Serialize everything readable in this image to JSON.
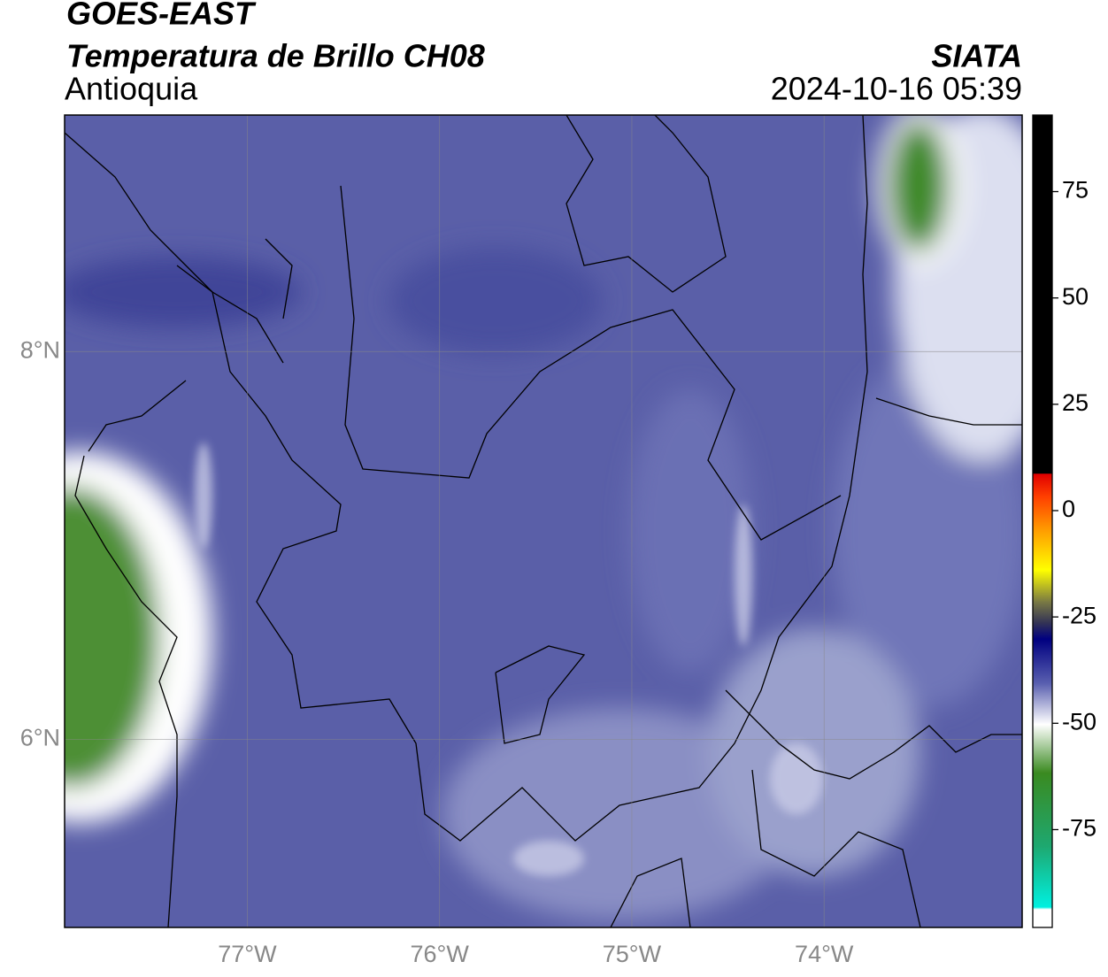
{
  "header": {
    "title": "GOES-EAST",
    "subtitle": "Temperatura de Brillo CH08",
    "region": "Antioquia",
    "source": "SIATA",
    "datetime": "2024-10-16 05:39"
  },
  "map": {
    "xlim": [
      -77.95,
      -72.97
    ],
    "ylim": [
      5.03,
      9.22
    ],
    "xticks": [
      {
        "value": -77,
        "label": "77°W"
      },
      {
        "value": -76,
        "label": "76°W"
      },
      {
        "value": -75,
        "label": "75°W"
      },
      {
        "value": -74,
        "label": "74°W"
      }
    ],
    "yticks": [
      {
        "value": 8,
        "label": "8°N"
      },
      {
        "value": 6,
        "label": "6°N"
      }
    ],
    "grid": true
  },
  "colorbar": {
    "lim": [
      -98,
      93
    ],
    "ticks": [
      75,
      50,
      25,
      0,
      -25,
      -50,
      -75
    ]
  }
}
